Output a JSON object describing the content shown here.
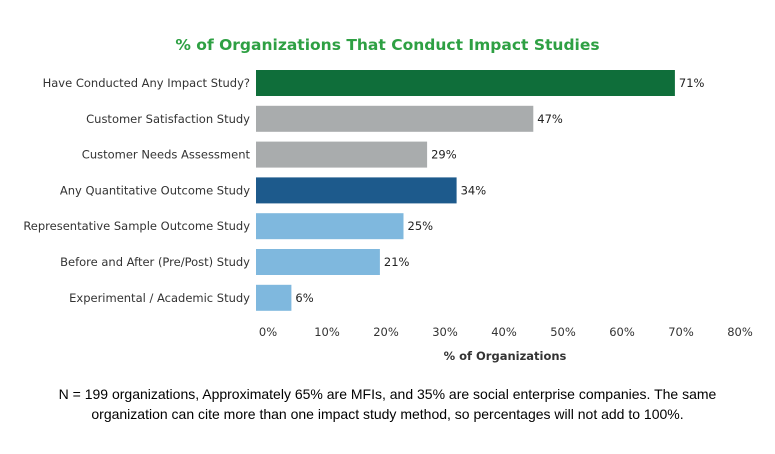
{
  "chart_data": {
    "type": "bar",
    "orientation": "horizontal",
    "title": "% of Organizations That Conduct Impact Studies",
    "xlabel": "% of Organizations",
    "ylabel": "",
    "categories": [
      "Have Conducted Any Impact Study?",
      "Customer Satisfaction Study",
      "Customer Needs Assessment",
      "Any Quantitative Outcome Study",
      "Representative Sample Outcome Study",
      "Before and After (Pre/Post) Study",
      "Experimental / Academic Study"
    ],
    "values": [
      71,
      47,
      29,
      34,
      25,
      21,
      6
    ],
    "value_labels": [
      "71%",
      "47%",
      "29%",
      "34%",
      "25%",
      "21%",
      "6%"
    ],
    "colors": [
      "#0f6e3a",
      "#a9acad",
      "#a9acad",
      "#1d5a8c",
      "#7fb8de",
      "#7fb8de",
      "#7fb8de"
    ],
    "xlim": [
      0,
      80
    ],
    "xticks": [
      0,
      10,
      20,
      30,
      40,
      50,
      60,
      70,
      80
    ],
    "xtick_labels": [
      "0%",
      "10%",
      "20%",
      "30%",
      "40%",
      "50%",
      "60%",
      "70%",
      "80%"
    ],
    "grid": false,
    "legend": "none"
  },
  "footnote": "N = 199 organizations, Approximately 65% are MFIs, and 35% are social enterprise companies. The same organization can cite more than one impact study method, so percentages will not add to 100%."
}
